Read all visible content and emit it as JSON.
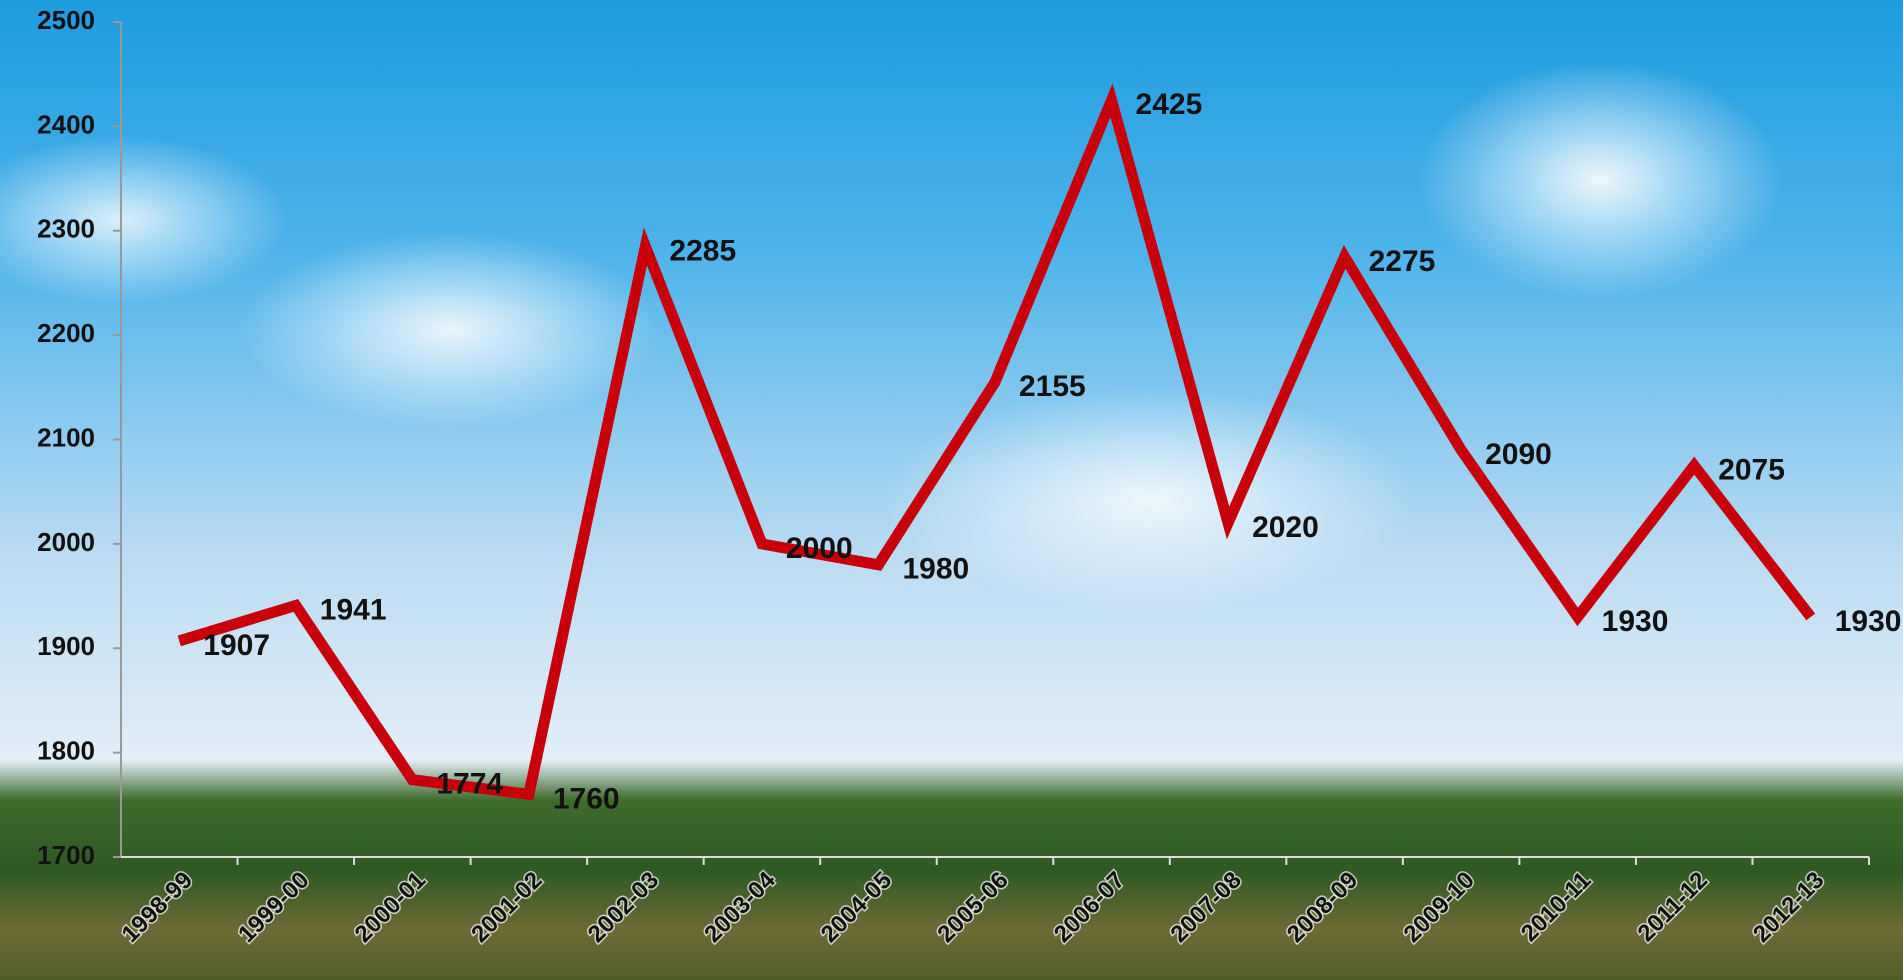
{
  "chart_data": {
    "type": "line",
    "categories": [
      "1998-99",
      "1999-00",
      "2000-01",
      "2001-02",
      "2002-03",
      "2003-04",
      "2004-05",
      "2005-06",
      "2006-07",
      "2007-08",
      "2008-09",
      "2009-10",
      "2010-11",
      "2011-12",
      "2012-13"
    ],
    "series": [
      {
        "color": "#c8000a",
        "values": [
          1907,
          1941,
          1774,
          1760,
          2285,
          2000,
          1980,
          2155,
          2425,
          2020,
          2275,
          2090,
          1930,
          2075,
          1930
        ]
      }
    ],
    "ylim": [
      1700,
      2500
    ],
    "yticks": [
      1700,
      1800,
      1900,
      2000,
      2100,
      2200,
      2300,
      2400,
      2500
    ],
    "grid": false
  }
}
